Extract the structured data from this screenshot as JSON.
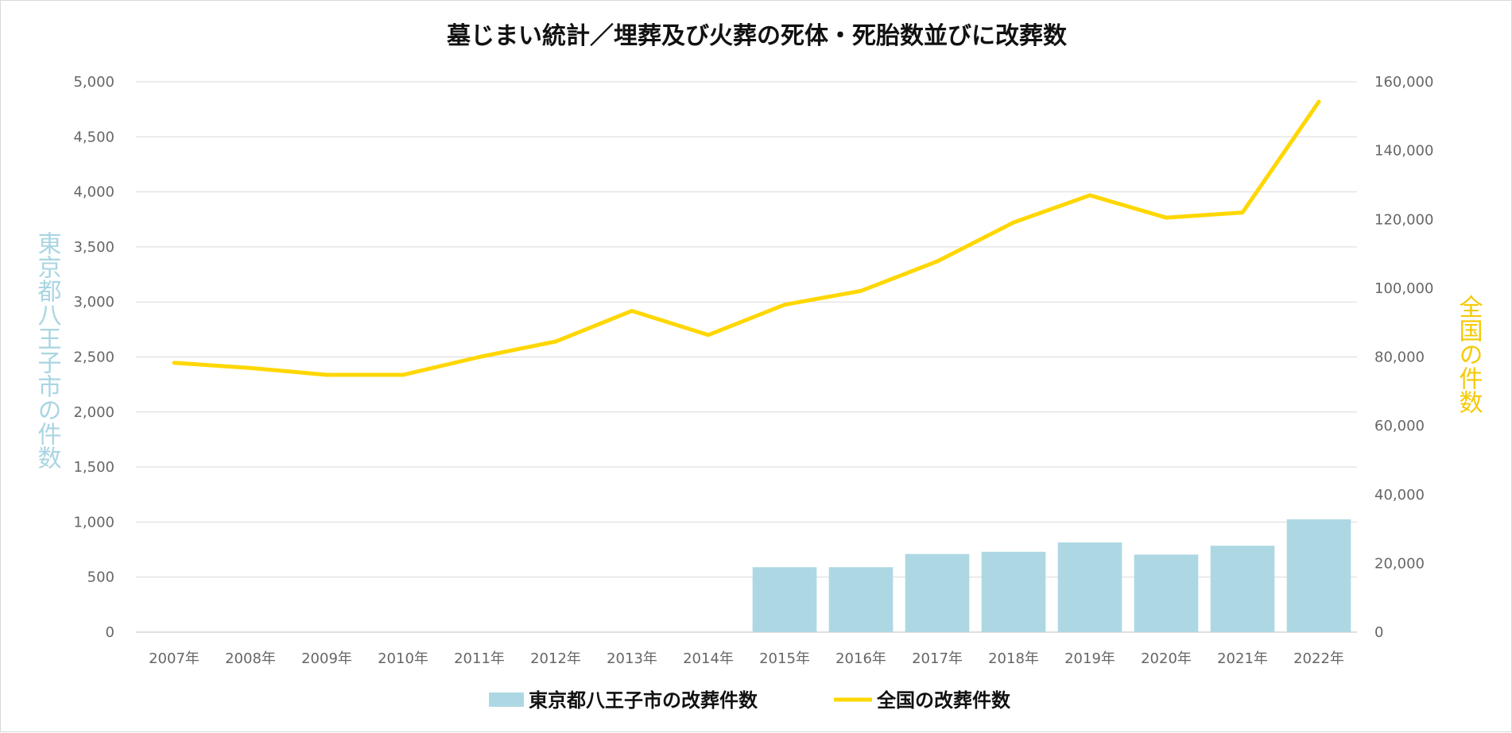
{
  "chart_data": {
    "type": "bar",
    "title": "墓じまい統計／埋葬及び火葬の死体・死胎数並びに改葬数",
    "categories": [
      "2007年",
      "2008年",
      "2009年",
      "2010年",
      "2011年",
      "2012年",
      "2013年",
      "2014年",
      "2015年",
      "2016年",
      "2017年",
      "2018年",
      "2019年",
      "2020年",
      "2021年",
      "2022年"
    ],
    "series": [
      {
        "name": "東京都八王子市の改葬件数",
        "type": "bar",
        "axis": "left",
        "color": "#add8e3",
        "values": [
          null,
          null,
          null,
          null,
          null,
          null,
          null,
          null,
          590,
          590,
          710,
          730,
          815,
          705,
          785,
          1025
        ]
      },
      {
        "name": "全国の改葬件数",
        "type": "line",
        "axis": "right",
        "color": "#ffd700",
        "values": [
          78300,
          76800,
          74800,
          74800,
          80000,
          84500,
          93400,
          86400,
          95200,
          99200,
          107800,
          119100,
          127000,
          120500,
          122000,
          154200
        ]
      }
    ],
    "ylabel": "東京都八王子市の件数",
    "y2label": "全国の件数",
    "ylim": [
      0,
      5000
    ],
    "y2lim": [
      0,
      160000
    ],
    "yticks": [
      "0",
      "500",
      "1,000",
      "1,500",
      "2,000",
      "2,500",
      "3,000",
      "3,500",
      "4,000",
      "4,500",
      "5,000"
    ],
    "y2ticks": [
      "0",
      "20,000",
      "40,000",
      "60,000",
      "80,000",
      "100,000",
      "120,000",
      "140,000",
      "160,000"
    ],
    "grid": true,
    "legend": "bottom-center"
  }
}
